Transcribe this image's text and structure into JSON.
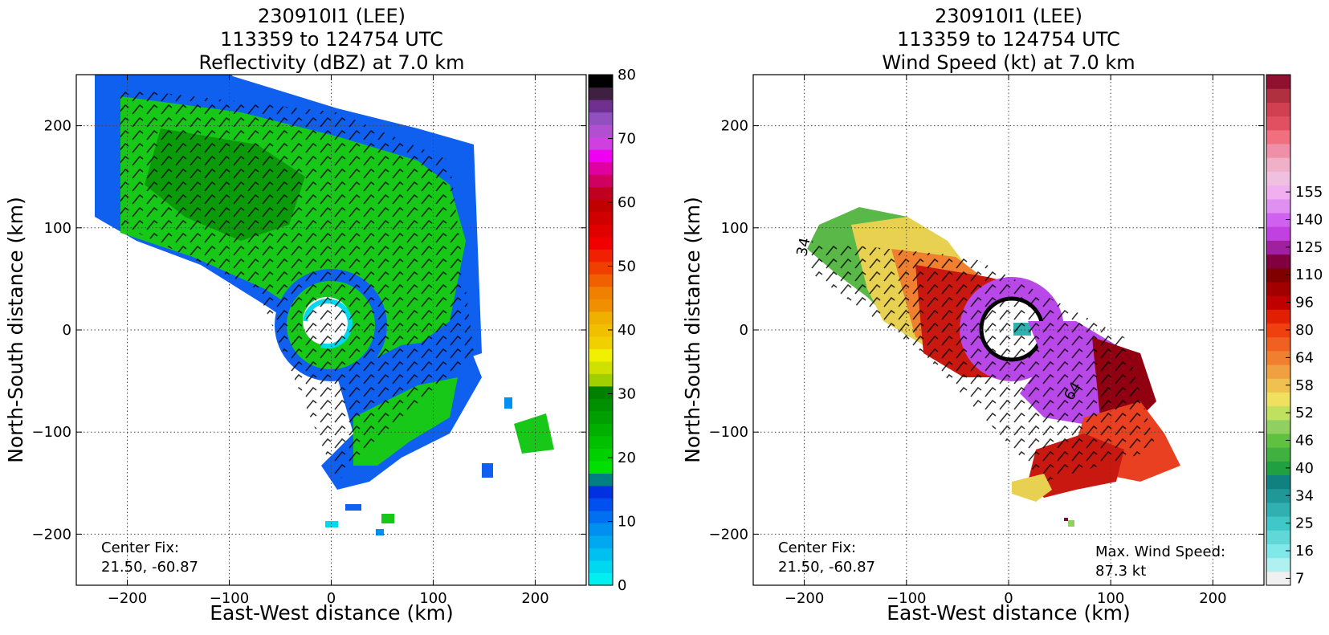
{
  "chart_data": [
    {
      "type": "heatmap",
      "title_lines": [
        "230910I1 (LEE)",
        "113359 to 124754 UTC",
        "Reflectivity (dBZ) at 7.0 km"
      ],
      "xlabel": "East-West distance (km)",
      "ylabel": "North-South distance (km)",
      "xlim": [
        -250,
        250
      ],
      "ylim": [
        -250,
        250
      ],
      "xticks": [
        -200,
        -100,
        0,
        100,
        200
      ],
      "yticks": [
        -200,
        -100,
        0,
        100,
        200
      ],
      "grid": true,
      "colorbar": {
        "min": 0,
        "max": 80,
        "tick_values": [
          0,
          10,
          20,
          30,
          40,
          50,
          60,
          70,
          80
        ],
        "tick_labels": [
          "0",
          "10",
          "20",
          "30",
          "40",
          "50",
          "60",
          "70",
          "80"
        ],
        "colors": [
          "#00f0f0",
          "#00d8f0",
          "#00c0f0",
          "#00a8f0",
          "#0090f0",
          "#0070f0",
          "#0050f0",
          "#0030e0",
          "#008080",
          "#00e000",
          "#00d000",
          "#00c000",
          "#00b000",
          "#00a000",
          "#009000",
          "#008000",
          "#a0d000",
          "#d0e000",
          "#f0f000",
          "#f0d000",
          "#f0c000",
          "#f0b000",
          "#f09000",
          "#f08000",
          "#f06000",
          "#f04000",
          "#f02000",
          "#f00000",
          "#e00000",
          "#d00000",
          "#c00000",
          "#c00020",
          "#d00060",
          "#e000a0",
          "#f000f0",
          "#d040e0",
          "#b050d0",
          "#9050c0",
          "#703090",
          "#402040",
          "#000000"
        ]
      },
      "annotations": [
        {
          "text_lines": [
            "Center Fix:",
            "21.50, -60.87"
          ]
        }
      ]
    },
    {
      "type": "heatmap",
      "title_lines": [
        "230910I1 (LEE)",
        "113359 to 124754 UTC",
        "Wind Speed (kt) at 7.0 km"
      ],
      "xlabel": "East-West distance (km)",
      "ylabel": "North-South distance (km)",
      "xlim": [
        -250,
        250
      ],
      "ylim": [
        -250,
        250
      ],
      "xticks": [
        -200,
        -100,
        0,
        100,
        200
      ],
      "yticks": [
        -200,
        -100,
        0,
        100,
        200
      ],
      "grid": true,
      "colorbar": {
        "tick_labels": [
          "7",
          "16",
          "25",
          "34",
          "40",
          "46",
          "52",
          "58",
          "64",
          "80",
          "96",
          "110",
          "125",
          "140",
          "155"
        ],
        "tick_bins": [
          0,
          2,
          4,
          6,
          8,
          10,
          12,
          14,
          16,
          18,
          20,
          22,
          24,
          26,
          28
        ],
        "colors": [
          "#f0f0f0",
          "#b0f0f0",
          "#80e8e8",
          "#60d8d8",
          "#40c8c8",
          "#30b0b0",
          "#209898",
          "#108080",
          "#20a040",
          "#40b040",
          "#60c040",
          "#90d060",
          "#c0e060",
          "#f0e060",
          "#f0c050",
          "#f0a040",
          "#f08030",
          "#f06020",
          "#f04010",
          "#e02000",
          "#c00000",
          "#a00000",
          "#800000",
          "#800040",
          "#a020a0",
          "#c040e0",
          "#d060f0",
          "#e090f0",
          "#f0b0f0",
          "#f0c0e0",
          "#f0b0c8",
          "#f090a8",
          "#f07080",
          "#e05060",
          "#d04050",
          "#b03040",
          "#901030"
        ]
      },
      "annotations": [
        {
          "text_lines": [
            "Center Fix:",
            "21.50, -60.87"
          ]
        },
        {
          "text_lines": [
            "Max. Wind Speed:",
            "87.3 kt"
          ]
        }
      ],
      "contour_labels": [
        "34",
        "64"
      ]
    }
  ]
}
